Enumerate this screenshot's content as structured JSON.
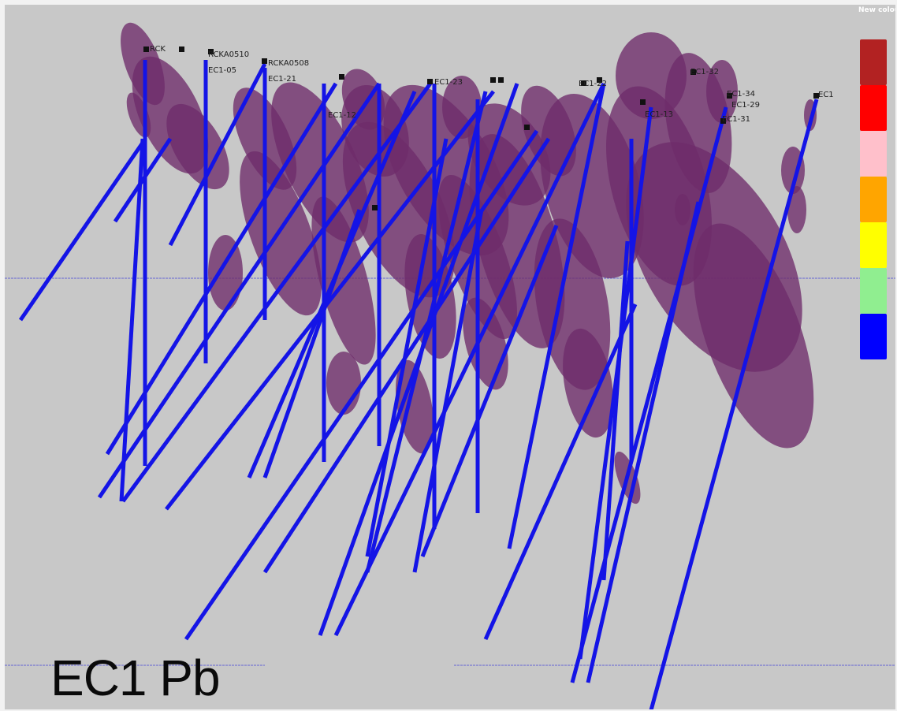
{
  "caption": "EC1 Pb",
  "legend": {
    "title": "New colour",
    "swatches": [
      {
        "color": "#b22222"
      },
      {
        "color": "#ff0000"
      },
      {
        "color": "#ffc0cb"
      },
      {
        "color": "#ffa500"
      },
      {
        "color": "#ffff00"
      },
      {
        "color": "#90ee90"
      },
      {
        "color": "#0000ff"
      }
    ]
  },
  "colors": {
    "background": "#c8c8c8",
    "drillhole": "#1414e6",
    "shell": "#6e2c6a",
    "reference_line": "#4a4ad8"
  },
  "hole_labels": [
    "RCK",
    "RCKA0510",
    "EC1-05",
    "RCKA0508",
    "EC1-21",
    "EC1-23",
    "EC1-22",
    "EC1-32",
    "EC1-34",
    "EC1-29",
    "EC1-31",
    "EC1-13",
    "EC1-12",
    "EC1"
  ]
}
